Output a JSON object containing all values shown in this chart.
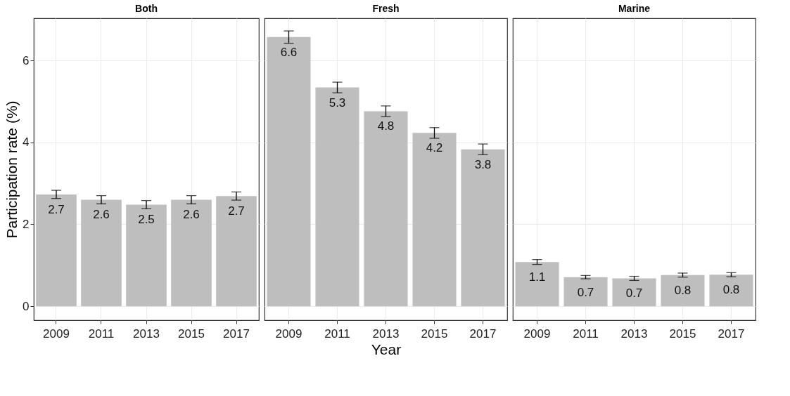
{
  "chart_data": [
    {
      "type": "bar",
      "title": "Both",
      "ylabel": "Participation rate (%)",
      "categories": [
        "2009",
        "2011",
        "2013",
        "2015",
        "2017"
      ],
      "values": [
        2.73,
        2.6,
        2.48,
        2.6,
        2.69
      ],
      "errors": [
        0.1,
        0.1,
        0.1,
        0.1,
        0.1
      ],
      "value_labels": [
        "2.7",
        "2.6",
        "2.5",
        "2.6",
        "2.7"
      ],
      "color": "#bebebe",
      "ylim": [
        -0.34,
        7.03
      ],
      "yticks": [
        0,
        2,
        4,
        6
      ],
      "grid": true
    },
    {
      "type": "bar",
      "title": "Fresh",
      "xlabel": "Year",
      "categories": [
        "2009",
        "2011",
        "2013",
        "2015",
        "2017"
      ],
      "values": [
        6.57,
        5.34,
        4.76,
        4.23,
        3.83
      ],
      "errors": [
        0.15,
        0.13,
        0.13,
        0.13,
        0.13
      ],
      "value_labels": [
        "6.6",
        "5.3",
        "4.8",
        "4.2",
        "3.8"
      ],
      "color": "#bebebe",
      "ylim": [
        -0.34,
        7.03
      ],
      "yticks": [
        0,
        2,
        4,
        6
      ],
      "grid": true,
      "tick_labels": "x"
    },
    {
      "type": "bar",
      "title": "Marine",
      "categories": [
        "2009",
        "2011",
        "2013",
        "2015",
        "2017"
      ],
      "values": [
        1.08,
        0.71,
        0.68,
        0.76,
        0.77
      ],
      "errors": [
        0.06,
        0.04,
        0.05,
        0.05,
        0.05
      ],
      "value_labels": [
        "1.1",
        "0.7",
        "0.7",
        "0.8",
        "0.8"
      ],
      "color": "#bebebe",
      "ylim": [
        -0.34,
        7.03
      ],
      "yticks": [
        0,
        2,
        4,
        6
      ],
      "grid": true,
      "tick_labels": "x"
    }
  ]
}
